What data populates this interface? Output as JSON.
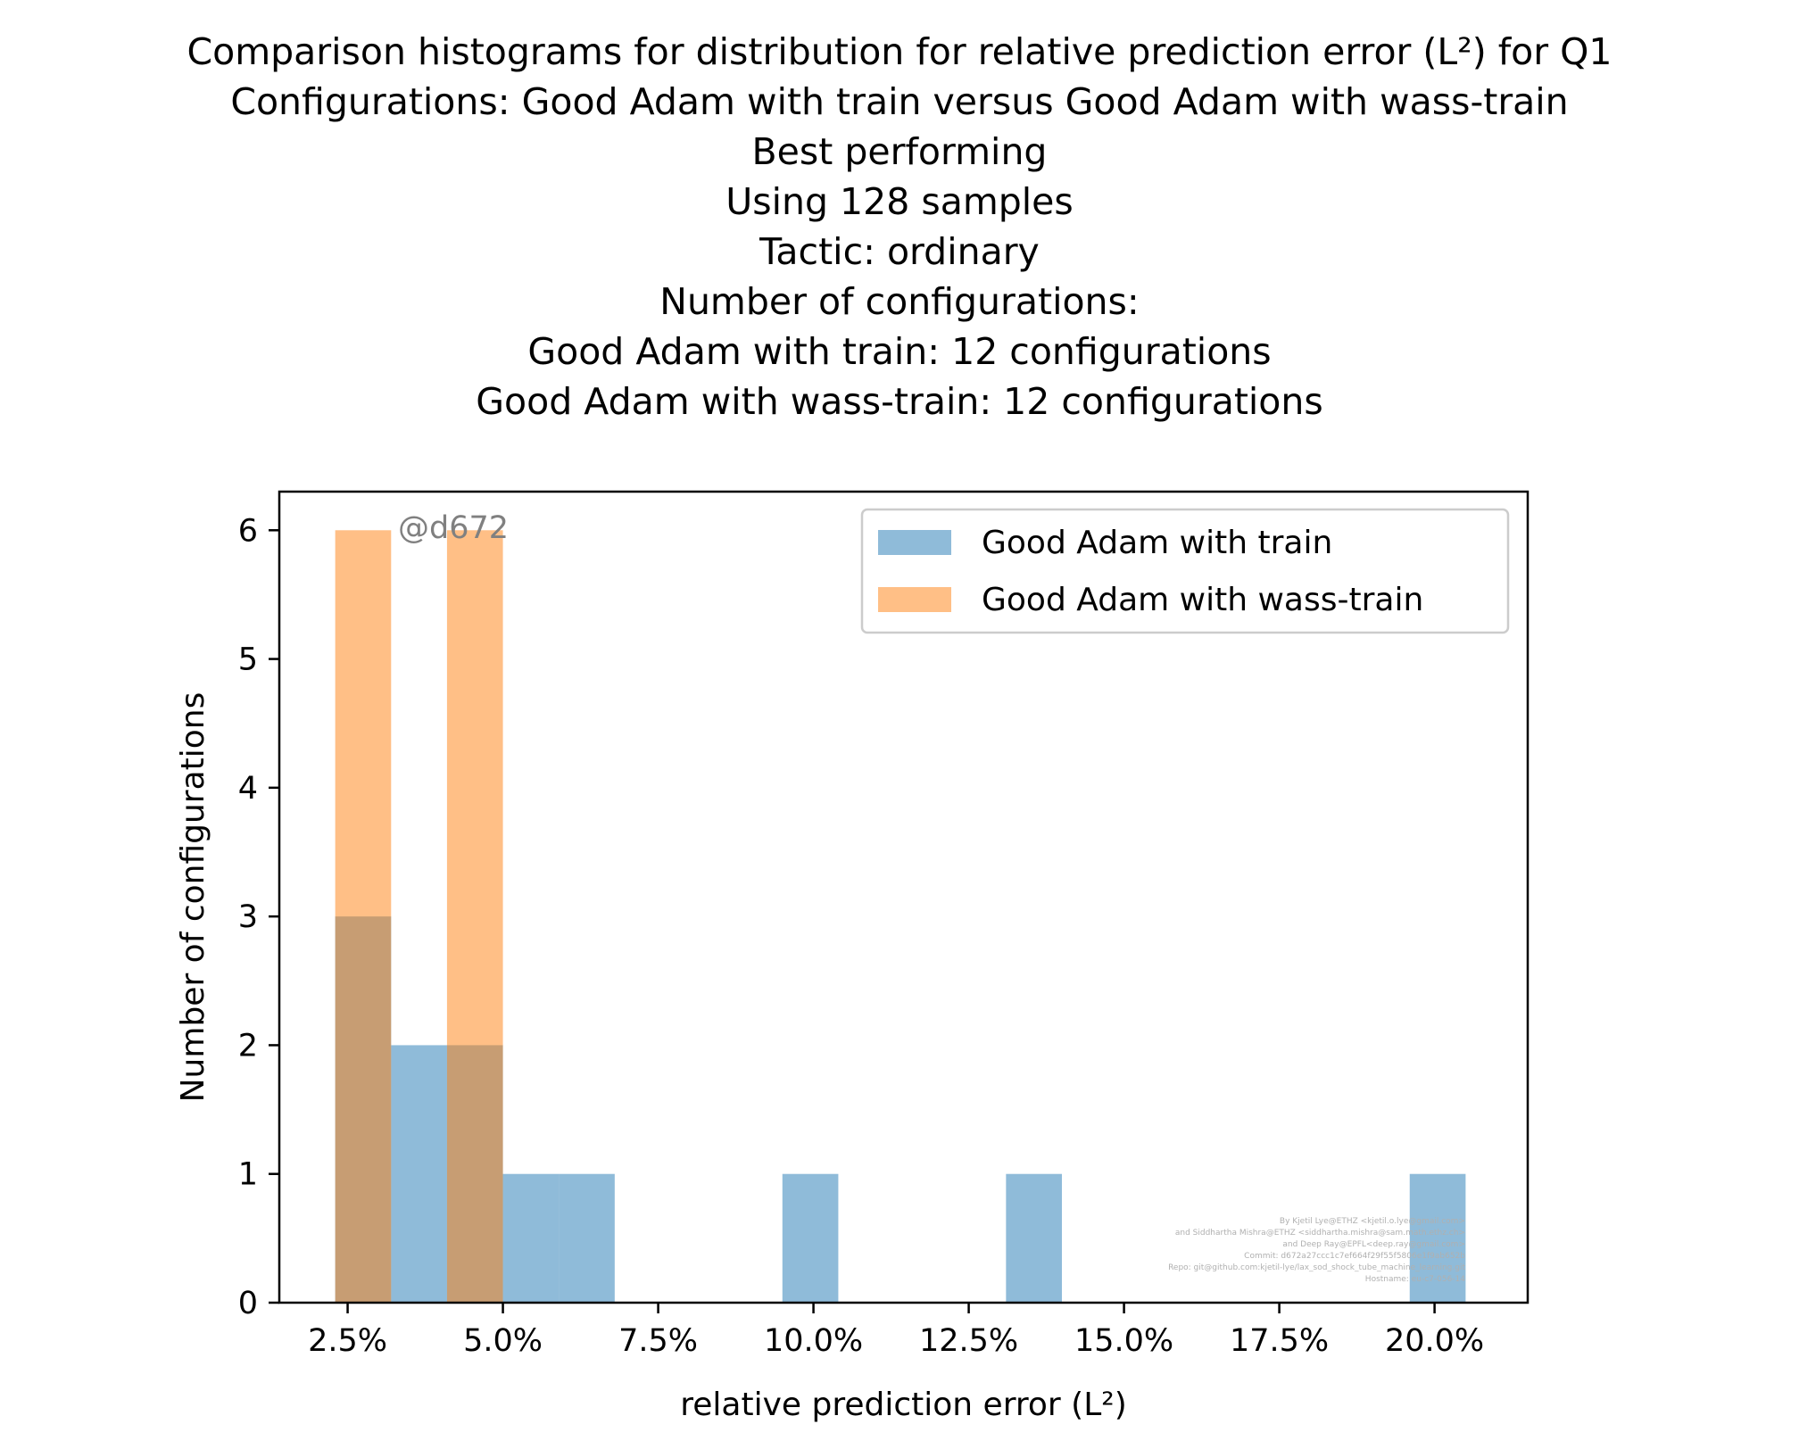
{
  "title_lines": [
    "Comparison histograms for distribution for relative prediction error (L²) for Q1",
    "Configurations: Good Adam with train versus Good Adam with wass-train",
    "Best performing",
    "Using 128 samples",
    "Tactic: ordinary",
    "Number of configurations:",
    "Good Adam with train: 12 configurations",
    "Good Adam with wass-train: 12 configurations"
  ],
  "chart_data": {
    "type": "bar",
    "subtype": "histogram",
    "xlabel": "relative prediction error (L²)",
    "ylabel": "Number of configurations",
    "xlim": [
      1.4,
      21.5
    ],
    "ylim": [
      0,
      6.3
    ],
    "x_ticks": [
      2.5,
      5.0,
      7.5,
      10.0,
      12.5,
      15.0,
      17.5,
      20.0
    ],
    "x_tick_labels": [
      "2.5%",
      "5.0%",
      "7.5%",
      "10.0%",
      "12.5%",
      "15.0%",
      "17.5%",
      "20.0%"
    ],
    "y_ticks": [
      0,
      1,
      2,
      3,
      4,
      5,
      6
    ],
    "y_tick_labels": [
      "0",
      "1",
      "2",
      "3",
      "4",
      "5",
      "6"
    ],
    "bin_edges": [
      2.3,
      3.2,
      4.1,
      5.0,
      5.9,
      6.8,
      7.7,
      8.6,
      9.5,
      10.4,
      11.3,
      12.2,
      13.1,
      14.0,
      14.9,
      15.8,
      16.7,
      17.6,
      18.5,
      19.4,
      20.3
    ],
    "series": [
      {
        "name": "Good Adam with train",
        "color": "#1f77b4",
        "alpha": 0.5,
        "counts": [
          3,
          2,
          2,
          1,
          1,
          0,
          0,
          0,
          1,
          0,
          0,
          0,
          1,
          0,
          0,
          0,
          0,
          0,
          0,
          0
        ]
      },
      {
        "name": "Good Adam with wass-train",
        "color": "#ff7f0e",
        "alpha": 0.5,
        "counts": [
          6,
          0,
          6,
          0,
          0,
          0,
          0,
          0,
          0,
          0,
          0,
          0,
          0,
          0,
          0,
          0,
          0,
          0,
          0,
          0
        ]
      }
    ],
    "extra_bars": [
      {
        "series": 0,
        "x0": 19.6,
        "x1": 20.5,
        "count": 1
      }
    ],
    "legend_position": "upper right",
    "grid": false
  },
  "annotation": "@d672",
  "credits": [
    "By Kjetil Lye@ETHZ <kjetil.o.lye@gmail.com>",
    "and Siddhartha Mishra@ETHZ <siddhartha.mishra@sam.math.ethz.ch>",
    "and Deep Ray@EPFL<deep.ray@gmail.com>",
    "Commit: d672a27ccc1c7ef664f29f55f5806e1f9ab652b",
    "Repo: git@github.com:kjetil-lye/lax_sod_shock_tube_machine_learning.git",
    "Hostname: eu-c7-056-14"
  ]
}
